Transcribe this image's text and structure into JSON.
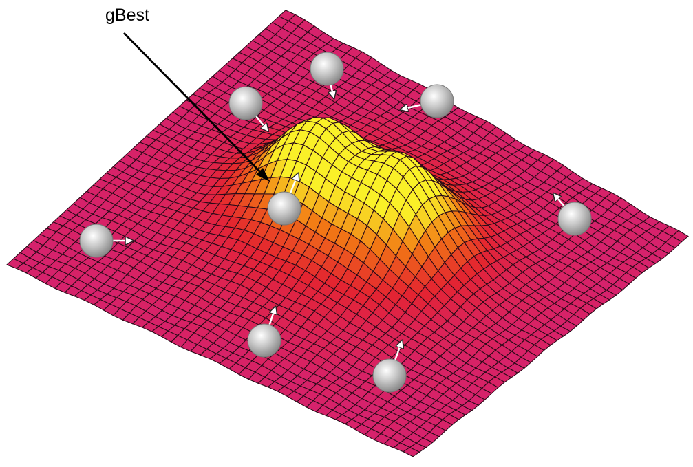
{
  "annotation": {
    "label": "gBest"
  }
}
